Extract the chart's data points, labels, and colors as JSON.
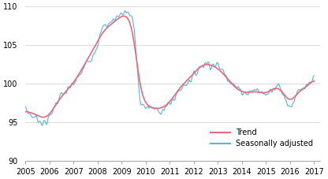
{
  "ylim": [
    90,
    110
  ],
  "xlim": [
    2005.0,
    2017.25
  ],
  "yticks": [
    90,
    95,
    100,
    105,
    110
  ],
  "xtick_years": [
    2005,
    2006,
    2007,
    2008,
    2009,
    2010,
    2011,
    2012,
    2013,
    2014,
    2015,
    2016,
    2017
  ],
  "trend_color": "#e8687d",
  "seasonal_color": "#5ab4d6",
  "background_color": "#ffffff",
  "grid_color": "#cccccc",
  "legend_labels": [
    "Trend",
    "Seasonally adjusted"
  ],
  "figsize": [
    4.16,
    2.27
  ],
  "dpi": 100,
  "kx": [
    2005.0,
    2005.25,
    2005.5,
    2005.75,
    2006.0,
    2006.25,
    2006.5,
    2006.75,
    2007.0,
    2007.25,
    2007.5,
    2007.75,
    2008.0,
    2008.25,
    2008.5,
    2008.75,
    2009.0,
    2009.25,
    2009.5,
    2009.75,
    2010.0,
    2010.25,
    2010.5,
    2010.75,
    2011.0,
    2011.25,
    2011.5,
    2011.75,
    2012.0,
    2012.25,
    2012.5,
    2012.75,
    2013.0,
    2013.25,
    2013.5,
    2013.75,
    2014.0,
    2014.25,
    2014.5,
    2014.75,
    2015.0,
    2015.25,
    2015.5,
    2015.75,
    2016.0,
    2016.25,
    2016.5,
    2016.75,
    2017.0
  ],
  "sa_ky": [
    96.7,
    95.8,
    95.5,
    94.8,
    95.5,
    97.5,
    98.5,
    99.0,
    100.0,
    101.0,
    102.5,
    103.5,
    105.2,
    107.5,
    107.8,
    108.5,
    109.2,
    109.4,
    108.0,
    97.5,
    97.0,
    96.8,
    96.5,
    96.7,
    97.3,
    98.5,
    99.5,
    100.3,
    101.0,
    102.2,
    102.7,
    102.5,
    102.3,
    101.5,
    100.5,
    99.5,
    99.0,
    98.8,
    99.2,
    99.0,
    98.5,
    99.5,
    99.8,
    98.5,
    96.8,
    98.5,
    99.2,
    99.5,
    100.8
  ],
  "trend_ky": [
    96.5,
    96.2,
    95.9,
    95.4,
    95.8,
    97.3,
    98.4,
    99.2,
    100.1,
    101.3,
    102.8,
    104.0,
    105.5,
    107.0,
    107.5,
    108.2,
    108.8,
    109.1,
    107.2,
    98.5,
    97.2,
    96.8,
    96.7,
    96.9,
    97.5,
    98.8,
    99.8,
    100.5,
    101.3,
    102.3,
    102.6,
    102.4,
    102.0,
    101.2,
    100.3,
    99.3,
    98.9,
    98.8,
    99.0,
    98.9,
    98.6,
    99.3,
    99.7,
    98.7,
    97.2,
    98.7,
    99.3,
    99.6,
    100.9
  ]
}
